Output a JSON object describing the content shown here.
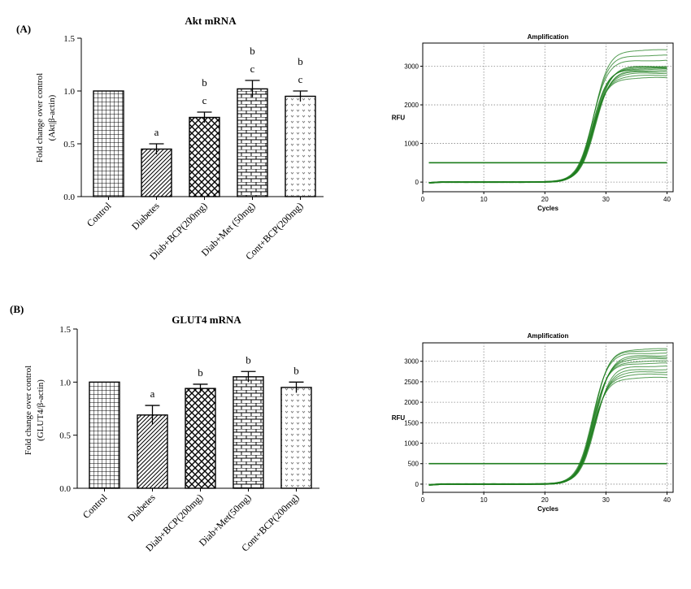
{
  "panels": [
    {
      "label": "(A)",
      "bar_chart": {
        "type": "bar",
        "title": "Akt mRNA",
        "ylabel_line1": "Fold change over control",
        "ylabel_line2": "(Akt|β-actin)",
        "ylim": [
          0,
          1.5
        ],
        "yticks": [
          "0.0",
          "0.5",
          "1.0",
          "1.5"
        ],
        "categories": [
          "Control",
          "Diabetes",
          "Diab+BCP(200mg)",
          "Diab+Met (50mg)",
          "Cont+BCP(200mg)"
        ],
        "values": [
          1.0,
          0.45,
          0.75,
          1.02,
          0.95
        ],
        "errors": [
          0,
          0.05,
          0.05,
          0.08,
          0.05
        ],
        "annotations": [
          [],
          [
            "a"
          ],
          [
            "b",
            "c"
          ],
          [
            "b",
            "c"
          ],
          [
            "b",
            "c"
          ]
        ],
        "patterns": [
          "grid",
          "diag",
          "cross",
          "brick",
          "dots"
        ]
      },
      "amp_chart": {
        "type": "line",
        "title": "Amplification",
        "xlabel": "Cycles",
        "ylabel": "RFU",
        "xticks": [
          "0",
          "10",
          "20",
          "30",
          "40"
        ],
        "yticks": [
          "0",
          "1000",
          "2000",
          "3000"
        ],
        "xlim": [
          0,
          41
        ],
        "ylim": [
          -250,
          3600
        ],
        "threshold": 500,
        "line_color": "#1e7d1e",
        "curve_midpoint_cycle": 28,
        "plateaus": [
          2700,
          2760,
          2820,
          2860,
          2890,
          2920,
          2940,
          2960,
          2980,
          3000,
          3150,
          3280,
          3420
        ]
      }
    },
    {
      "label": "(B)",
      "bar_chart": {
        "type": "bar",
        "title": "GLUT4 mRNA",
        "ylabel_line1": "Fold change over control",
        "ylabel_line2": "(GLUT4/β-actin)",
        "ylim": [
          0,
          1.5
        ],
        "yticks": [
          "0.0",
          "0.5",
          "1.0",
          "1.5"
        ],
        "categories": [
          "Control",
          "Diabetes",
          "Diab+BCP(200mg)",
          "Diab+Met(50mg)",
          "Cont+BCP(200mg)"
        ],
        "values": [
          1.0,
          0.69,
          0.94,
          1.05,
          0.95
        ],
        "errors": [
          0,
          0.09,
          0.04,
          0.05,
          0.05
        ],
        "annotations": [
          [],
          [
            "a"
          ],
          [
            "b"
          ],
          [
            "b"
          ],
          [
            "b"
          ]
        ],
        "patterns": [
          "grid",
          "diag",
          "cross",
          "brick",
          "dots"
        ]
      },
      "amp_chart": {
        "type": "line",
        "title": "Amplification",
        "xlabel": "Cycles",
        "ylabel": "RFU",
        "xticks": [
          "0",
          "10",
          "20",
          "30",
          "40"
        ],
        "yticks": [
          "0",
          "500",
          "1000",
          "1500",
          "2000",
          "2500",
          "3000"
        ],
        "xlim": [
          0,
          41
        ],
        "ylim": [
          -200,
          3450
        ],
        "threshold": 500,
        "line_color": "#1e7d1e",
        "curve_midpoint_cycle": 28,
        "plateaus": [
          2600,
          2680,
          2740,
          2800,
          2880,
          2950,
          3000,
          3060,
          3100,
          3140,
          3200,
          3260,
          3300
        ]
      }
    }
  ]
}
